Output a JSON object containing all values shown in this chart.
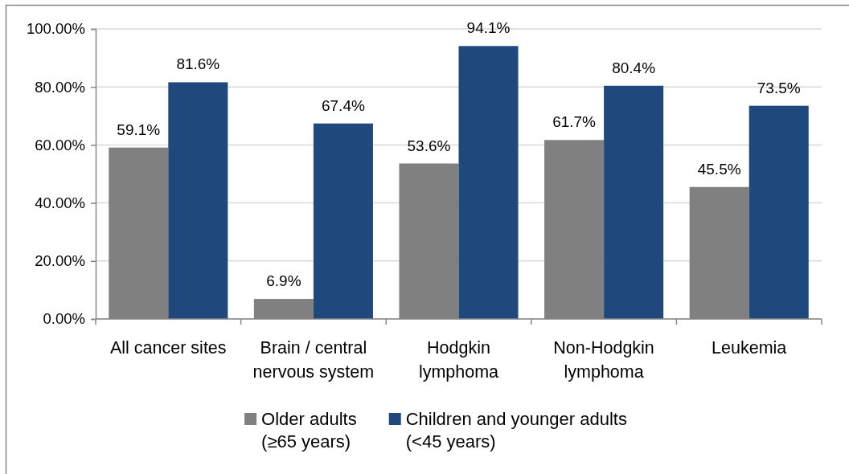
{
  "chart_data": {
    "type": "bar",
    "categories": [
      "All cancer sites",
      "Brain / central\nnervous system",
      "Hodgkin\nlymphoma",
      "Non-Hodgkin\nlymphoma",
      "Leukemia"
    ],
    "series": [
      {
        "name": "Older adults\n(≥65 years)",
        "color": "#808080",
        "values": [
          59.1,
          6.9,
          53.6,
          61.7,
          45.5
        ],
        "value_labels": [
          "59.1%",
          "6.9%",
          "53.6%",
          "61.7%",
          "45.5%"
        ]
      },
      {
        "name": "Children and younger adults\n(<45 years)",
        "color": "#1f497d",
        "values": [
          81.6,
          67.4,
          94.1,
          80.4,
          73.5
        ],
        "value_labels": [
          "81.6%",
          "67.4%",
          "94.1%",
          "80.4%",
          "73.5%"
        ]
      }
    ],
    "ylim": [
      0,
      100
    ],
    "yticks": [
      {
        "value": 0,
        "label": "0.00%"
      },
      {
        "value": 20,
        "label": "20.00%"
      },
      {
        "value": 40,
        "label": "40.00%"
      },
      {
        "value": 60,
        "label": "60.00%"
      },
      {
        "value": 80,
        "label": "80.00%"
      },
      {
        "value": 100,
        "label": "100.00%"
      }
    ],
    "grid": "y",
    "legend": "bottom"
  }
}
